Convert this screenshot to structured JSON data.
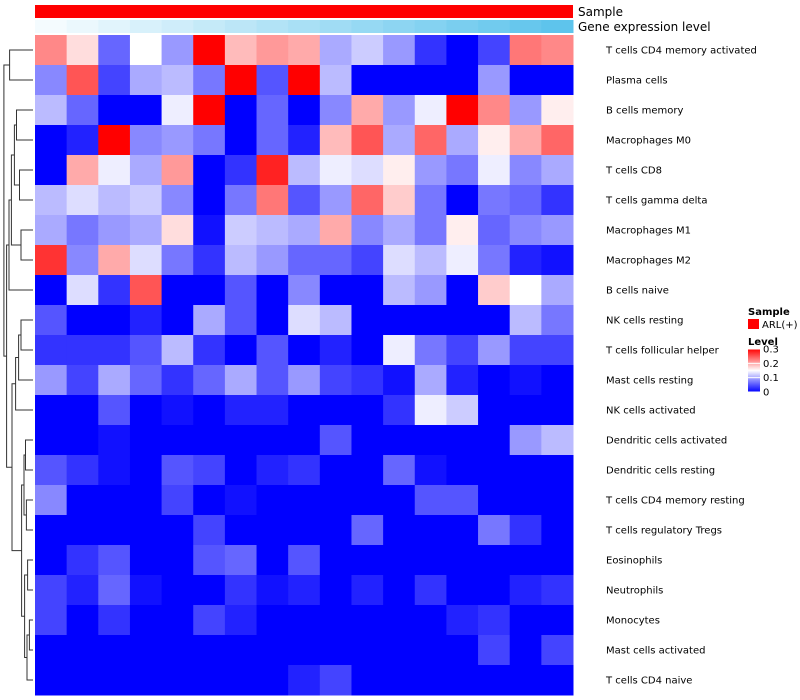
{
  "chart_data": {
    "type": "heatmap",
    "title": "",
    "annotations": [
      "Sample",
      "Gene expression level"
    ],
    "annotation_colors": {
      "Sample": "#ff0000",
      "gene_expression_start": "#f4fbfe",
      "gene_expression_end": "#5ec4ec"
    },
    "rows": [
      "T cells CD4 memory activated",
      "Plasma cells",
      "B cells memory",
      "Macrophages M0",
      "T cells CD8",
      "T cells gamma delta",
      "Macrophages M1",
      "Macrophages M2",
      "B cells naive",
      "NK cells resting",
      "T cells follicular helper",
      "Mast cells resting",
      "NK cells activated",
      "Dendritic cells activated",
      "Dendritic cells resting",
      "T cells CD4 memory resting",
      "T cells regulatory  Tregs",
      "Eosinophils",
      "Neutrophils",
      "Monocytes",
      "Mast cells activated",
      "T cells CD4 naive"
    ],
    "values": [
      [
        0.22,
        0.17,
        0.06,
        0.15,
        0.09,
        0.3,
        0.19,
        0.21,
        0.2,
        0.1,
        0.12,
        0.09,
        0.03,
        0.0,
        0.04,
        0.23,
        0.22
      ],
      [
        0.08,
        0.25,
        0.04,
        0.1,
        0.11,
        0.07,
        0.3,
        0.05,
        0.3,
        0.11,
        0.0,
        0.0,
        0.0,
        0.0,
        0.09,
        0.0,
        0.0
      ],
      [
        0.11,
        0.06,
        0.0,
        0.0,
        0.14,
        0.3,
        0.0,
        0.06,
        0.0,
        0.08,
        0.2,
        0.09,
        0.14,
        0.3,
        0.22,
        0.09,
        0.16
      ],
      [
        0.0,
        0.02,
        0.3,
        0.08,
        0.09,
        0.07,
        0.0,
        0.06,
        0.02,
        0.19,
        0.25,
        0.1,
        0.24,
        0.1,
        0.16,
        0.2,
        0.24
      ],
      [
        0.0,
        0.2,
        0.14,
        0.1,
        0.21,
        0.0,
        0.03,
        0.28,
        0.11,
        0.14,
        0.13,
        0.16,
        0.09,
        0.07,
        0.14,
        0.08,
        0.1
      ],
      [
        0.11,
        0.13,
        0.11,
        0.12,
        0.08,
        0.0,
        0.07,
        0.23,
        0.05,
        0.09,
        0.24,
        0.18,
        0.07,
        0.0,
        0.07,
        0.06,
        0.03
      ],
      [
        0.1,
        0.07,
        0.09,
        0.1,
        0.17,
        0.01,
        0.12,
        0.11,
        0.1,
        0.2,
        0.08,
        0.1,
        0.07,
        0.16,
        0.06,
        0.08,
        0.09
      ],
      [
        0.27,
        0.08,
        0.2,
        0.13,
        0.07,
        0.03,
        0.11,
        0.09,
        0.06,
        0.06,
        0.04,
        0.13,
        0.11,
        0.14,
        0.07,
        0.02,
        0.01
      ],
      [
        0.0,
        0.13,
        0.03,
        0.25,
        0.0,
        0.0,
        0.05,
        0.0,
        0.08,
        0.0,
        0.0,
        0.11,
        0.09,
        0.0,
        0.18,
        0.15,
        0.1
      ],
      [
        0.05,
        0.0,
        0.0,
        0.02,
        0.0,
        0.1,
        0.05,
        0.0,
        0.13,
        0.11,
        0.0,
        0.0,
        0.0,
        0.0,
        0.0,
        0.11,
        0.07
      ],
      [
        0.03,
        0.03,
        0.03,
        0.05,
        0.11,
        0.03,
        0.0,
        0.05,
        0.0,
        0.02,
        0.0,
        0.14,
        0.07,
        0.04,
        0.09,
        0.04,
        0.04
      ],
      [
        0.09,
        0.04,
        0.1,
        0.06,
        0.03,
        0.06,
        0.1,
        0.05,
        0.09,
        0.04,
        0.03,
        0.01,
        0.1,
        0.02,
        0.0,
        0.01,
        0.0
      ],
      [
        0.0,
        0.0,
        0.05,
        0.0,
        0.01,
        0.0,
        0.02,
        0.02,
        0.0,
        0.0,
        0.0,
        0.03,
        0.14,
        0.12,
        0.0,
        0.0,
        0.0
      ],
      [
        0.0,
        0.0,
        0.01,
        0.0,
        0.0,
        0.0,
        0.0,
        0.0,
        0.0,
        0.05,
        0.0,
        0.0,
        0.0,
        0.0,
        0.0,
        0.09,
        0.11
      ],
      [
        0.05,
        0.03,
        0.01,
        0.0,
        0.05,
        0.04,
        0.0,
        0.02,
        0.03,
        0.0,
        0.0,
        0.06,
        0.01,
        0.0,
        0.0,
        0.0,
        0.0
      ],
      [
        0.08,
        0.0,
        0.0,
        0.0,
        0.04,
        0.0,
        0.01,
        0.0,
        0.0,
        0.0,
        0.0,
        0.0,
        0.05,
        0.05,
        0.0,
        0.0,
        0.0
      ],
      [
        0.0,
        0.0,
        0.0,
        0.0,
        0.0,
        0.04,
        0.0,
        0.0,
        0.0,
        0.0,
        0.06,
        0.0,
        0.0,
        0.0,
        0.07,
        0.03,
        0.0
      ],
      [
        0.0,
        0.03,
        0.05,
        0.0,
        0.0,
        0.05,
        0.06,
        0.0,
        0.05,
        0.0,
        0.0,
        0.0,
        0.0,
        0.0,
        0.0,
        0.0,
        0.0
      ],
      [
        0.04,
        0.02,
        0.06,
        0.01,
        0.0,
        0.0,
        0.03,
        0.01,
        0.02,
        0.0,
        0.02,
        0.0,
        0.03,
        0.0,
        0.0,
        0.02,
        0.03
      ],
      [
        0.04,
        0.0,
        0.03,
        0.0,
        0.0,
        0.04,
        0.02,
        0.0,
        0.0,
        0.0,
        0.0,
        0.0,
        0.0,
        0.02,
        0.03,
        0.0,
        0.0
      ],
      [
        0.0,
        0.0,
        0.0,
        0.0,
        0.0,
        0.0,
        0.0,
        0.0,
        0.0,
        0.0,
        0.0,
        0.0,
        0.0,
        0.0,
        0.04,
        0.0,
        0.04
      ],
      [
        0.0,
        0.0,
        0.0,
        0.0,
        0.0,
        0.0,
        0.0,
        0.0,
        0.02,
        0.04,
        0.0,
        0.0,
        0.0,
        0.0,
        0.0,
        0.0,
        0.0
      ]
    ],
    "color_scale": {
      "low": "#0000ff",
      "mid": "#ffffff",
      "high": "#ff0000",
      "min": 0,
      "max": 0.3,
      "mid_value": 0.15
    },
    "legend": {
      "sample_title": "Sample",
      "sample_item": "ARL(+)",
      "level_title": "Level",
      "ticks": [
        "0.3",
        "0.2",
        "0.1",
        "0"
      ],
      "tick_values": [
        0.3,
        0.2,
        0.1,
        0
      ],
      "placement": "right"
    },
    "dendrogram": "rows"
  }
}
